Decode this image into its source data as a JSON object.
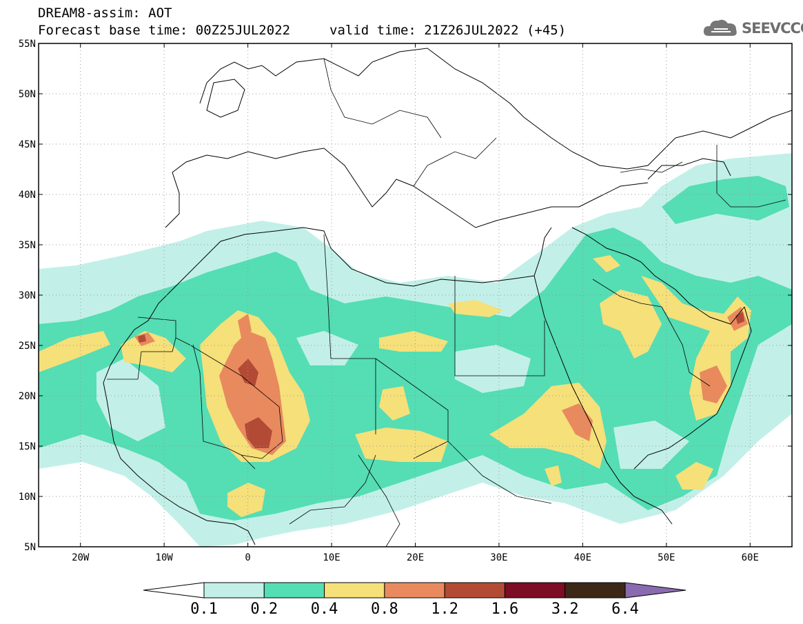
{
  "header": {
    "line1": "DREAM8-assim: AOT",
    "line2": "Forecast base time: 00Z25JUL2022",
    "valid": "valid time: 21Z26JUL2022 (+45)"
  },
  "logo": {
    "text": "SEEVCCC",
    "icon": "cloud-icon"
  },
  "map": {
    "lon_range": [
      -25,
      65
    ],
    "lat_range": [
      5,
      55
    ],
    "lat_ticks": [
      {
        "v": 55,
        "label": "55N"
      },
      {
        "v": 50,
        "label": "50N"
      },
      {
        "v": 45,
        "label": "45N"
      },
      {
        "v": 40,
        "label": "40N"
      },
      {
        "v": 35,
        "label": "35N"
      },
      {
        "v": 30,
        "label": "30N"
      },
      {
        "v": 25,
        "label": "25N"
      },
      {
        "v": 20,
        "label": "20N"
      },
      {
        "v": 15,
        "label": "15N"
      },
      {
        "v": 10,
        "label": "10N"
      },
      {
        "v": 5,
        "label": "5N"
      }
    ],
    "lon_ticks": [
      {
        "v": -20,
        "label": "20W"
      },
      {
        "v": -10,
        "label": "10W"
      },
      {
        "v": 0,
        "label": "0"
      },
      {
        "v": 10,
        "label": "10E"
      },
      {
        "v": 20,
        "label": "20E"
      },
      {
        "v": 30,
        "label": "30E"
      },
      {
        "v": 40,
        "label": "40E"
      },
      {
        "v": 50,
        "label": "50E"
      },
      {
        "v": 60,
        "label": "60E"
      }
    ],
    "grid": "dotted"
  },
  "colorbar": {
    "colors": [
      "#ffffff",
      "#c2f0e8",
      "#55ddb4",
      "#f5e07a",
      "#e88a5e",
      "#b34a35",
      "#7d0c25",
      "#3d2818",
      "#8a6bb0"
    ],
    "labels": [
      "0.1",
      "0.2",
      "0.4",
      "0.8",
      "1.2",
      "1.6",
      "3.2",
      "6.4"
    ]
  }
}
